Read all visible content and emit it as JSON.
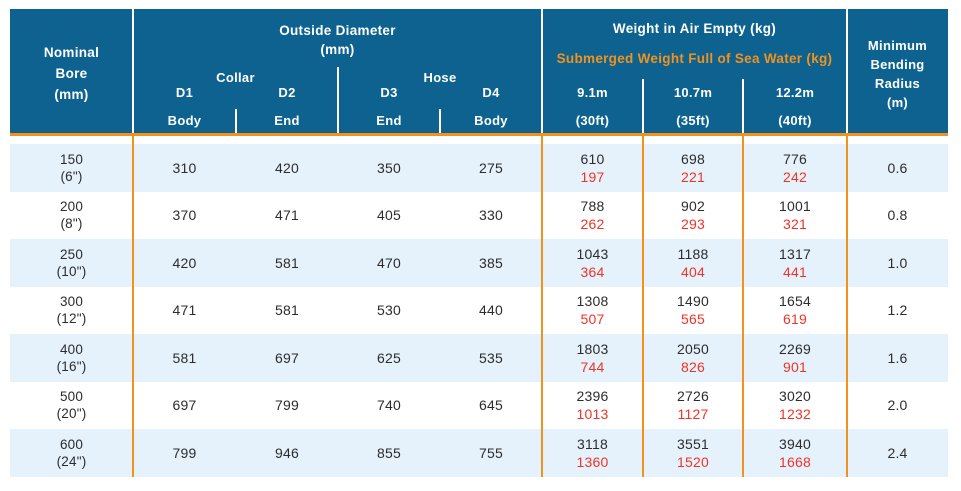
{
  "colors": {
    "header_blue": "#0d6290",
    "row_alt": "#e5f2fb",
    "orange": "#f2921d",
    "red": "#ee3429",
    "text_dark": "#2c2c2e"
  },
  "header": {
    "nominal_bore": "Nominal\nBore\n(mm)",
    "outside_diameter": "Outside Diameter\n(mm)",
    "collar": "Collar",
    "hose": "Hose",
    "d_labels": [
      "D1",
      "D2",
      "D3",
      "D4"
    ],
    "d_sub_labels": [
      "Body",
      "End",
      "End",
      "Body"
    ],
    "weight_air": "Weight in Air Empty (kg)",
    "weight_submerged": "Submerged Weight Full of Sea Water (kg)",
    "lengths": [
      "9.1m",
      "10.7m",
      "12.2m"
    ],
    "length_feet": [
      "(30ft)",
      "(35ft)",
      "(40ft)"
    ],
    "min_bending": "Minimum\nBending\nRadius\n(m)"
  },
  "rows": [
    {
      "bore": "150",
      "inches": "(6\")",
      "d1": "310",
      "d2": "420",
      "d3": "350",
      "d4": "275",
      "weights": [
        {
          "air": "610",
          "sub": "197"
        },
        {
          "air": "698",
          "sub": "221"
        },
        {
          "air": "776",
          "sub": "242"
        }
      ],
      "radius": "0.6"
    },
    {
      "bore": "200",
      "inches": "(8\")",
      "d1": "370",
      "d2": "471",
      "d3": "405",
      "d4": "330",
      "weights": [
        {
          "air": "788",
          "sub": "262"
        },
        {
          "air": "902",
          "sub": "293"
        },
        {
          "air": "1001",
          "sub": "321"
        }
      ],
      "radius": "0.8"
    },
    {
      "bore": "250",
      "inches": "(10\")",
      "d1": "420",
      "d2": "581",
      "d3": "470",
      "d4": "385",
      "weights": [
        {
          "air": "1043",
          "sub": "364"
        },
        {
          "air": "1188",
          "sub": "404"
        },
        {
          "air": "1317",
          "sub": "441"
        }
      ],
      "radius": "1.0"
    },
    {
      "bore": "300",
      "inches": "(12\")",
      "d1": "471",
      "d2": "581",
      "d3": "530",
      "d4": "440",
      "weights": [
        {
          "air": "1308",
          "sub": "507"
        },
        {
          "air": "1490",
          "sub": "565"
        },
        {
          "air": "1654",
          "sub": "619"
        }
      ],
      "radius": "1.2"
    },
    {
      "bore": "400",
      "inches": "(16\")",
      "d1": "581",
      "d2": "697",
      "d3": "625",
      "d4": "535",
      "weights": [
        {
          "air": "1803",
          "sub": "744"
        },
        {
          "air": "2050",
          "sub": "826"
        },
        {
          "air": "2269",
          "sub": "901"
        }
      ],
      "radius": "1.6"
    },
    {
      "bore": "500",
      "inches": "(20\")",
      "d1": "697",
      "d2": "799",
      "d3": "740",
      "d4": "645",
      "weights": [
        {
          "air": "2396",
          "sub": "1013"
        },
        {
          "air": "2726",
          "sub": "1127"
        },
        {
          "air": "3020",
          "sub": "1232"
        }
      ],
      "radius": "2.0"
    },
    {
      "bore": "600",
      "inches": "(24\")",
      "d1": "799",
      "d2": "946",
      "d3": "855",
      "d4": "755",
      "weights": [
        {
          "air": "3118",
          "sub": "1360"
        },
        {
          "air": "3551",
          "sub": "1520"
        },
        {
          "air": "3940",
          "sub": "1668"
        }
      ],
      "radius": "2.4"
    }
  ]
}
